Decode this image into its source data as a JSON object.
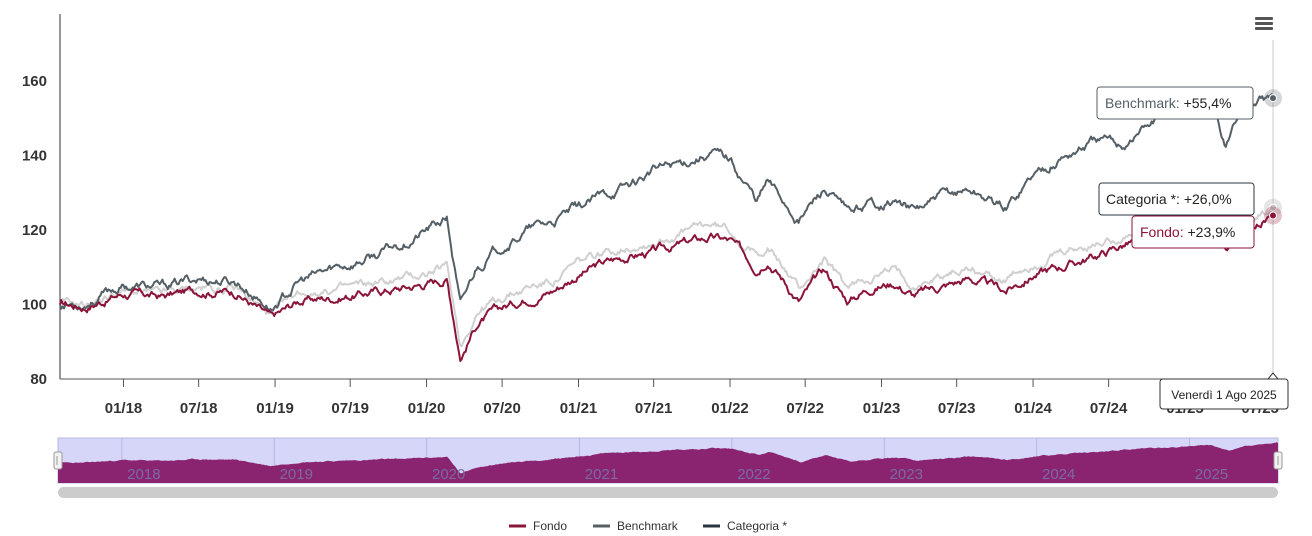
{
  "chart_data": {
    "type": "line",
    "y_ticks": [
      "80",
      "100",
      "120",
      "140",
      "160"
    ],
    "ylim": [
      80,
      178
    ],
    "x_ticks": [
      "01/18",
      "07/18",
      "01/19",
      "07/19",
      "01/20",
      "07/20",
      "01/21",
      "07/21",
      "01/22",
      "07/22",
      "01/23",
      "07/23",
      "01/24",
      "07/24",
      "01/25",
      "07/25"
    ],
    "x_range": [
      "2017-08-01",
      "2025-08-01"
    ],
    "navigator_labels": [
      "2018",
      "2019",
      "2020",
      "2021",
      "2022",
      "2023",
      "2024",
      "2025"
    ],
    "series": [
      {
        "name": "Fondo",
        "color": "#8b1538",
        "x": [
          "2017-08-01",
          "2017-10-01",
          "2018-01-01",
          "2018-04-01",
          "2018-07-01",
          "2018-10-01",
          "2018-12-24",
          "2019-03-01",
          "2019-06-01",
          "2019-09-01",
          "2019-12-01",
          "2020-02-19",
          "2020-03-23",
          "2020-05-01",
          "2020-07-01",
          "2020-09-01",
          "2020-11-01",
          "2021-01-01",
          "2021-03-01",
          "2021-05-01",
          "2021-07-01",
          "2021-09-01",
          "2021-11-15",
          "2022-01-01",
          "2022-03-07",
          "2022-04-01",
          "2022-06-16",
          "2022-08-15",
          "2022-10-12",
          "2022-12-01",
          "2023-02-01",
          "2023-03-20",
          "2023-06-01",
          "2023-08-01",
          "2023-10-27",
          "2024-01-01",
          "2024-03-01",
          "2024-06-01",
          "2024-08-05",
          "2024-10-01",
          "2024-12-01",
          "2025-02-18",
          "2025-04-08",
          "2025-05-15",
          "2025-08-01"
        ],
        "values": [
          100.0,
          99.5,
          103.0,
          102.0,
          104.0,
          103.5,
          96.0,
          101.0,
          102.0,
          103.5,
          105.0,
          107.0,
          86.0,
          95.0,
          99.0,
          102.0,
          104.0,
          108.0,
          111.0,
          113.0,
          114.0,
          116.0,
          118.0,
          117.0,
          110.0,
          113.0,
          101.0,
          109.0,
          101.0,
          104.5,
          106.0,
          102.5,
          105.0,
          107.0,
          103.5,
          108.0,
          110.0,
          113.0,
          116.0,
          118.0,
          119.0,
          121.5,
          114.0,
          120.0,
          123.9
        ]
      },
      {
        "name": "Benchmark",
        "color": "#555f66",
        "x": [
          "2017-08-01",
          "2017-10-01",
          "2018-01-01",
          "2018-04-01",
          "2018-07-01",
          "2018-10-01",
          "2018-12-24",
          "2019-03-01",
          "2019-06-01",
          "2019-09-01",
          "2019-12-01",
          "2020-02-19",
          "2020-03-23",
          "2020-05-01",
          "2020-07-01",
          "2020-09-01",
          "2020-11-01",
          "2021-01-01",
          "2021-03-01",
          "2021-05-01",
          "2021-07-01",
          "2021-09-01",
          "2021-11-15",
          "2022-01-01",
          "2022-03-07",
          "2022-04-01",
          "2022-06-16",
          "2022-08-15",
          "2022-10-12",
          "2022-12-01",
          "2023-02-01",
          "2023-03-20",
          "2023-06-01",
          "2023-08-01",
          "2023-10-27",
          "2024-01-01",
          "2024-03-01",
          "2024-06-01",
          "2024-08-05",
          "2024-10-01",
          "2024-12-01",
          "2025-02-18",
          "2025-04-08",
          "2025-05-15",
          "2025-08-01"
        ],
        "values": [
          100.0,
          100.5,
          105.0,
          104.5,
          107.0,
          106.0,
          99.0,
          106.0,
          110.0,
          113.0,
          118.0,
          123.0,
          99.0,
          110.0,
          116.0,
          120.0,
          122.0,
          126.0,
          129.0,
          132.0,
          136.0,
          138.0,
          141.0,
          139.0,
          128.0,
          133.0,
          123.0,
          131.0,
          124.0,
          127.0,
          128.0,
          125.0,
          129.0,
          131.0,
          126.0,
          135.0,
          139.0,
          144.0,
          143.0,
          148.0,
          152.0,
          156.0,
          143.0,
          152.0,
          155.4
        ]
      },
      {
        "name": "Categoria *",
        "color": "#d0d0d0",
        "x": [
          "2017-08-01",
          "2017-10-01",
          "2018-01-01",
          "2018-04-01",
          "2018-07-01",
          "2018-10-01",
          "2018-12-24",
          "2019-03-01",
          "2019-06-01",
          "2019-09-01",
          "2019-12-01",
          "2020-02-19",
          "2020-03-23",
          "2020-05-01",
          "2020-07-01",
          "2020-09-01",
          "2020-11-01",
          "2021-01-01",
          "2021-03-01",
          "2021-05-01",
          "2021-07-01",
          "2021-09-01",
          "2021-11-15",
          "2022-01-01",
          "2022-03-07",
          "2022-04-01",
          "2022-06-16",
          "2022-08-15",
          "2022-10-12",
          "2022-12-01",
          "2023-02-01",
          "2023-03-20",
          "2023-06-01",
          "2023-08-01",
          "2023-10-27",
          "2024-01-01",
          "2024-03-01",
          "2024-06-01",
          "2024-08-05",
          "2024-10-01",
          "2024-12-01",
          "2025-02-18",
          "2025-04-08",
          "2025-05-15",
          "2025-08-01"
        ],
        "values": [
          100.0,
          100.0,
          103.5,
          102.5,
          104.5,
          104.0,
          97.0,
          103.0,
          104.0,
          105.5,
          107.5,
          110.0,
          89.0,
          98.0,
          102.0,
          104.5,
          106.5,
          111.0,
          113.5,
          116.0,
          117.0,
          119.0,
          121.5,
          120.0,
          113.0,
          116.0,
          104.0,
          112.0,
          104.0,
          107.5,
          109.0,
          105.5,
          108.0,
          110.0,
          106.5,
          111.0,
          113.0,
          116.0,
          119.0,
          121.0,
          122.0,
          124.0,
          117.0,
          122.0,
          126.0
        ]
      }
    ],
    "tooltips": {
      "benchmark": {
        "label": "Benchmark: ",
        "value": "+55,4%"
      },
      "categoria": {
        "label": "Categoria *: ",
        "value": "+26,0%"
      },
      "fondo": {
        "label": "Fondo: ",
        "value": "+23,9%"
      },
      "date": "Venerdì 1 Ago 2025"
    },
    "legend": [
      {
        "name": "Fondo",
        "color": "#8b1538"
      },
      {
        "name": "Benchmark",
        "color": "#555f66"
      },
      {
        "name": "Categoria *",
        "color": "#2a3440"
      }
    ],
    "navigator_color": "#8b2470",
    "navigator_bg": "#d6d7f8"
  }
}
